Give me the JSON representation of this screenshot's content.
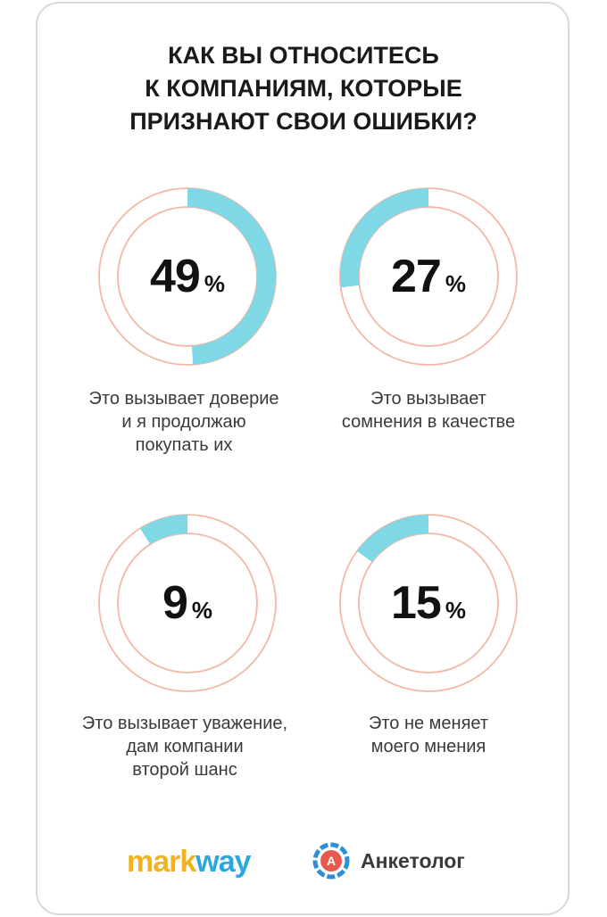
{
  "title": {
    "line1": "КАК ВЫ ОТНОСИТЕСЬ",
    "line2": "К КОМПАНИЯМ, КОТОРЫЕ",
    "line3": "ПРИЗНАЮТ СВОИ ОШИБКИ?"
  },
  "chart_data": {
    "type": "pie",
    "title": "КАК ВЫ ОТНОСИТЕСЬ К КОМПАНИЯМ, КОТОРЫЕ ПРИЗНАЮТ СВОИ ОШИБКИ?",
    "unit": "%",
    "colors": {
      "fill": "#7fd8e6",
      "ring": "#f2b8a6"
    },
    "items": [
      {
        "value": 49,
        "label_lines": [
          "Это вызывает доверие",
          "и я продолжаю",
          "покупать их"
        ]
      },
      {
        "value": 27,
        "label_lines": [
          "Это вызывает",
          "сомнения в качестве"
        ]
      },
      {
        "value": 9,
        "label_lines": [
          "Это вызывает уважение,",
          "дам компании",
          "второй шанс"
        ]
      },
      {
        "value": 15,
        "label_lines": [
          "Это не меняет",
          "моего мнения"
        ]
      }
    ]
  },
  "logos": {
    "markway": {
      "part1": "mark",
      "part2": "way"
    },
    "anketolog": {
      "text": "Анкетолог",
      "badge": "А"
    }
  }
}
